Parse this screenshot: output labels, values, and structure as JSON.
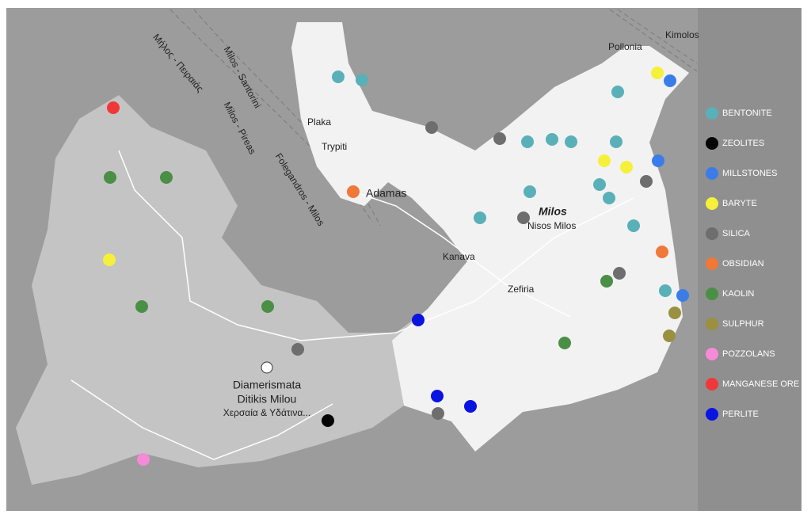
{
  "map": {
    "routes": [
      "Μήλος - Πειραιάς",
      "Milos - Santorini",
      "Milos - Pireas",
      "Folegandros - Milos"
    ],
    "places": [
      "Kimolos",
      "Pollonia",
      "Plaka",
      "Trypiti",
      "Adamas",
      "Milos",
      "Nisos Milos",
      "Kanava",
      "Zefiria",
      "Diamerismata",
      "Ditikis Milou",
      "Χερσαία & Υδάτινα..."
    ]
  },
  "legend": {
    "items": [
      {
        "label": "BENTONITE",
        "color": "#5ab0b8"
      },
      {
        "label": "ZEOLITES",
        "color": "#050505"
      },
      {
        "label": "MILLSTONES",
        "color": "#3b7de8"
      },
      {
        "label": "BARYTE",
        "color": "#f5f03a"
      },
      {
        "label": "SILICA",
        "color": "#6e6e6e"
      },
      {
        "label": "OBSIDIAN",
        "color": "#f07838"
      },
      {
        "label": "KAOLIN",
        "color": "#4a8f45"
      },
      {
        "label": "SULPHUR",
        "color": "#9a9040"
      },
      {
        "label": "POZZOLANS",
        "color": "#f58ad8"
      },
      {
        "label": "MANGANESE ORE",
        "color": "#f03838"
      },
      {
        "label": "PERLITE",
        "color": "#0a14e0"
      }
    ]
  }
}
